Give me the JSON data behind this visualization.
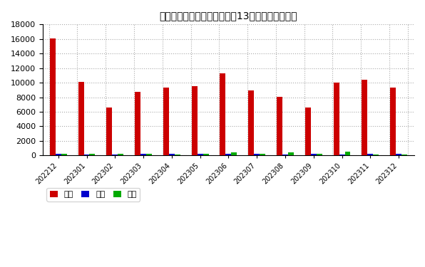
{
  "title": "日本自前三大进口来源国过去13个月别玉进口数量",
  "categories": [
    "202212",
    "202301",
    "202302",
    "202303",
    "202304",
    "202305",
    "202306",
    "202307",
    "202308",
    "202309",
    "202310",
    "202311",
    "202312"
  ],
  "china": [
    16100,
    10100,
    6550,
    8750,
    9300,
    9500,
    11300,
    8900,
    8100,
    6600,
    10050,
    10450,
    9300
  ],
  "korea": [
    250,
    170,
    150,
    220,
    210,
    190,
    220,
    200,
    150,
    180,
    130,
    190,
    200
  ],
  "bahrain": [
    220,
    200,
    230,
    270,
    170,
    200,
    450,
    210,
    380,
    230,
    550,
    170,
    130
  ],
  "china_color": "#CC0000",
  "korea_color": "#0000CC",
  "bahrain_color": "#00AA00",
  "bg_color": "#FFFFFF",
  "grid_color": "#AAAAAA",
  "ylim": [
    0,
    18000
  ],
  "yticks": [
    0,
    2000,
    4000,
    6000,
    8000,
    10000,
    12000,
    14000,
    16000,
    18000
  ],
  "legend_labels": [
    "中国",
    "韩国",
    "巴林"
  ],
  "bar_width": 0.2
}
